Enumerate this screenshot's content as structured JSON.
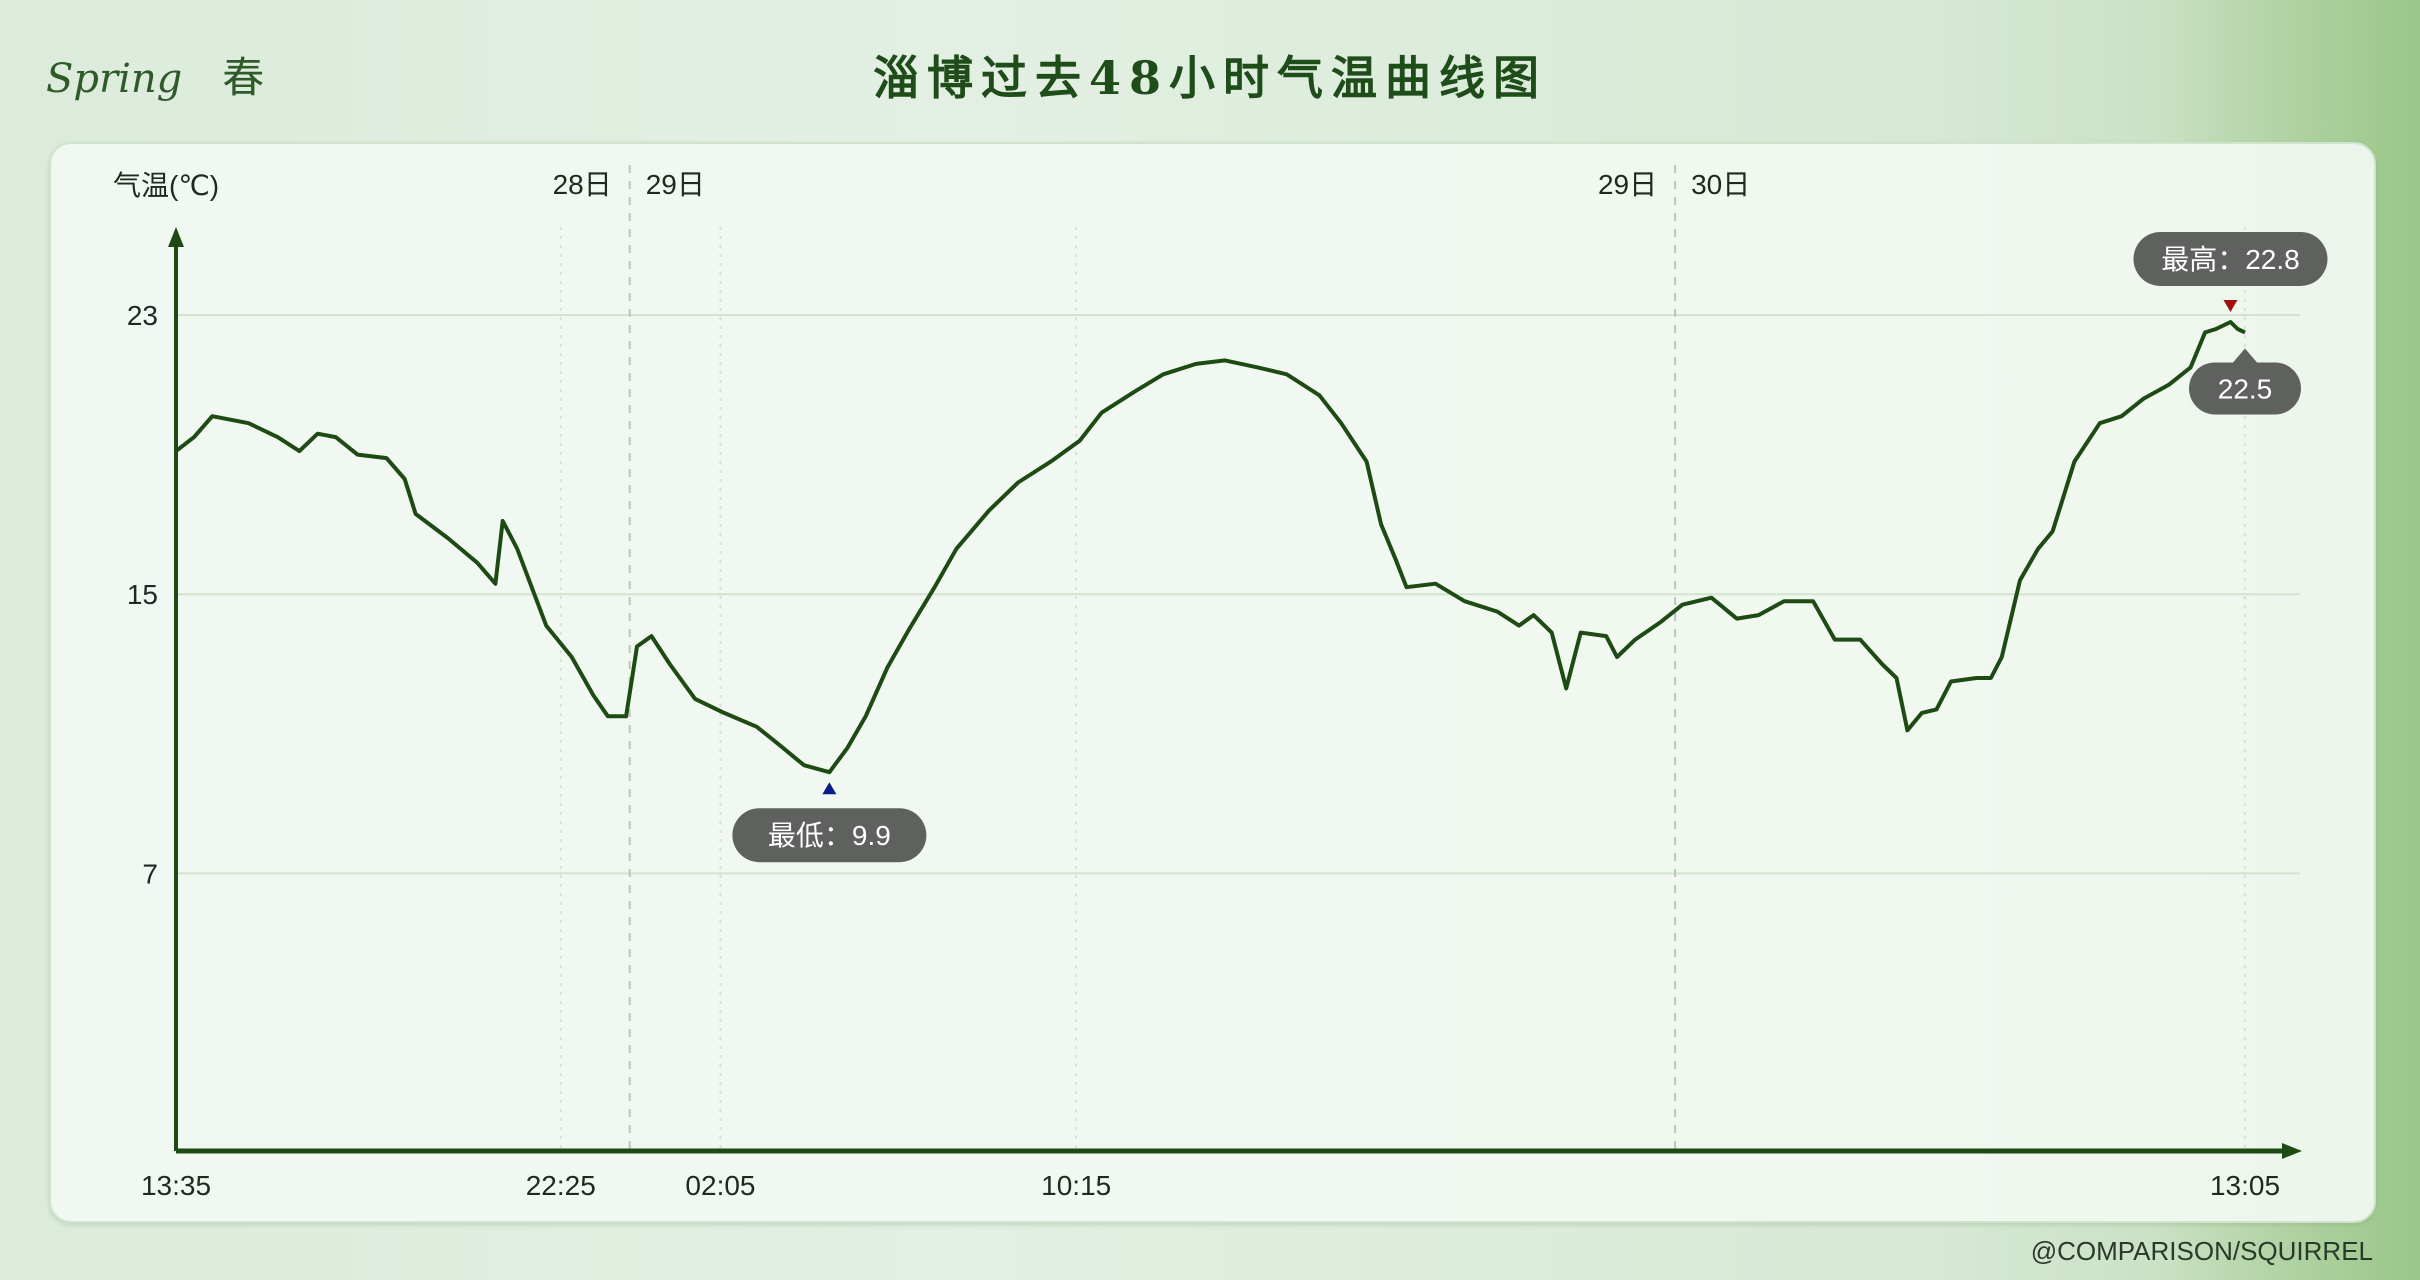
{
  "header": {
    "brand_en": "Spring",
    "brand_cn": "春",
    "title": "淄博过去48小时气温曲线图"
  },
  "watermark": "@COMPARISON/SQUIRREL",
  "colors": {
    "line": "#1e4a14",
    "axis": "#1e4a14",
    "badge": "#5f615f",
    "max_marker": "#a01010",
    "min_marker": "#0a1a8a",
    "grid": "#d3e3cf"
  },
  "chart_data": {
    "type": "line",
    "title": "淄博过去48小时气温曲线图",
    "ylabel": "气温(℃)",
    "xlabel": "",
    "ylim": [
      -1,
      26
    ],
    "yticks": [
      7,
      15,
      23
    ],
    "xlim": [
      "13:35",
      "13:05"
    ],
    "xticks": [
      "13:35",
      "22:25",
      "02:05",
      "10:15",
      "13:05"
    ],
    "grid": {
      "horizontal": true,
      "vertical": true
    },
    "day_separators": [
      {
        "before": "28日",
        "after": "29日",
        "time": "00:00"
      },
      {
        "before": "29日",
        "after": "30日",
        "time": "00:00"
      }
    ],
    "annotations": {
      "min": {
        "label": "最低：9.9",
        "value": 9.9,
        "time": "04:35"
      },
      "max": {
        "label": "最高：22.8",
        "value": 22.8,
        "time": "12:45"
      },
      "current": {
        "label": "22.5",
        "value": 22.5,
        "time": "13:05"
      }
    },
    "points": [
      [
        "13:35",
        19.1
      ],
      [
        "14:00",
        19.5
      ],
      [
        "14:25",
        20.1
      ],
      [
        "15:15",
        19.9
      ],
      [
        "15:55",
        19.5
      ],
      [
        "16:25",
        19.1
      ],
      [
        "16:50",
        19.6
      ],
      [
        "17:15",
        19.5
      ],
      [
        "17:45",
        19.0
      ],
      [
        "18:25",
        18.9
      ],
      [
        "18:50",
        18.3
      ],
      [
        "19:05",
        17.3
      ],
      [
        "19:50",
        16.6
      ],
      [
        "20:30",
        15.9
      ],
      [
        "20:55",
        15.3
      ],
      [
        "21:05",
        17.1
      ],
      [
        "21:25",
        16.3
      ],
      [
        "21:45",
        15.2
      ],
      [
        "22:05",
        14.1
      ],
      [
        "22:40",
        13.2
      ],
      [
        "23:10",
        12.1
      ],
      [
        "23:30",
        11.5
      ],
      [
        "23:55",
        11.5
      ],
      [
        "00:10",
        13.5
      ],
      [
        "00:30",
        13.8
      ],
      [
        "00:55",
        13.0
      ],
      [
        "01:30",
        12.0
      ],
      [
        "02:10",
        11.6
      ],
      [
        "02:55",
        11.2
      ],
      [
        "03:25",
        10.7
      ],
      [
        "04:00",
        10.1
      ],
      [
        "04:35",
        9.9
      ],
      [
        "05:00",
        10.6
      ],
      [
        "05:25",
        11.5
      ],
      [
        "05:55",
        12.9
      ],
      [
        "06:25",
        14.0
      ],
      [
        "07:00",
        15.2
      ],
      [
        "07:30",
        16.3
      ],
      [
        "08:15",
        17.4
      ],
      [
        "08:55",
        18.2
      ],
      [
        "09:40",
        18.8
      ],
      [
        "10:20",
        19.4
      ],
      [
        "10:50",
        20.2
      ],
      [
        "11:35",
        20.8
      ],
      [
        "12:15",
        21.3
      ],
      [
        "13:00",
        21.6
      ],
      [
        "13:40",
        21.7
      ],
      [
        "14:25",
        21.5
      ],
      [
        "15:05",
        21.3
      ],
      [
        "15:50",
        20.7
      ],
      [
        "16:20",
        19.9
      ],
      [
        "16:55",
        18.8
      ],
      [
        "17:15",
        17.0
      ],
      [
        "17:35",
        16.0
      ],
      [
        "17:50",
        15.2
      ],
      [
        "18:30",
        15.3
      ],
      [
        "19:10",
        14.8
      ],
      [
        "19:55",
        14.5
      ],
      [
        "20:25",
        14.1
      ],
      [
        "20:45",
        14.4
      ],
      [
        "21:10",
        13.9
      ],
      [
        "21:30",
        12.3
      ],
      [
        "21:50",
        13.9
      ],
      [
        "22:25",
        13.8
      ],
      [
        "22:40",
        13.2
      ],
      [
        "23:05",
        13.7
      ],
      [
        "23:40",
        14.2
      ],
      [
        "00:10",
        14.7
      ],
      [
        "00:50",
        14.9
      ],
      [
        "01:25",
        14.3
      ],
      [
        "01:55",
        14.4
      ],
      [
        "02:30",
        14.8
      ],
      [
        "03:10",
        14.8
      ],
      [
        "03:40",
        13.7
      ],
      [
        "04:15",
        13.7
      ],
      [
        "04:45",
        13.0
      ],
      [
        "05:05",
        12.6
      ],
      [
        "05:20",
        11.1
      ],
      [
        "05:40",
        11.6
      ],
      [
        "06:00",
        11.7
      ],
      [
        "06:20",
        12.5
      ],
      [
        "06:55",
        12.6
      ],
      [
        "07:15",
        12.6
      ],
      [
        "07:30",
        13.2
      ],
      [
        "07:55",
        15.4
      ],
      [
        "08:20",
        16.3
      ],
      [
        "08:40",
        16.8
      ],
      [
        "09:10",
        18.8
      ],
      [
        "09:45",
        19.9
      ],
      [
        "10:15",
        20.1
      ],
      [
        "10:45",
        20.6
      ],
      [
        "11:20",
        21.0
      ],
      [
        "11:50",
        21.5
      ],
      [
        "12:10",
        22.5
      ],
      [
        "12:25",
        22.6
      ],
      [
        "12:45",
        22.8
      ],
      [
        "12:55",
        22.6
      ],
      [
        "13:05",
        22.5
      ]
    ]
  }
}
